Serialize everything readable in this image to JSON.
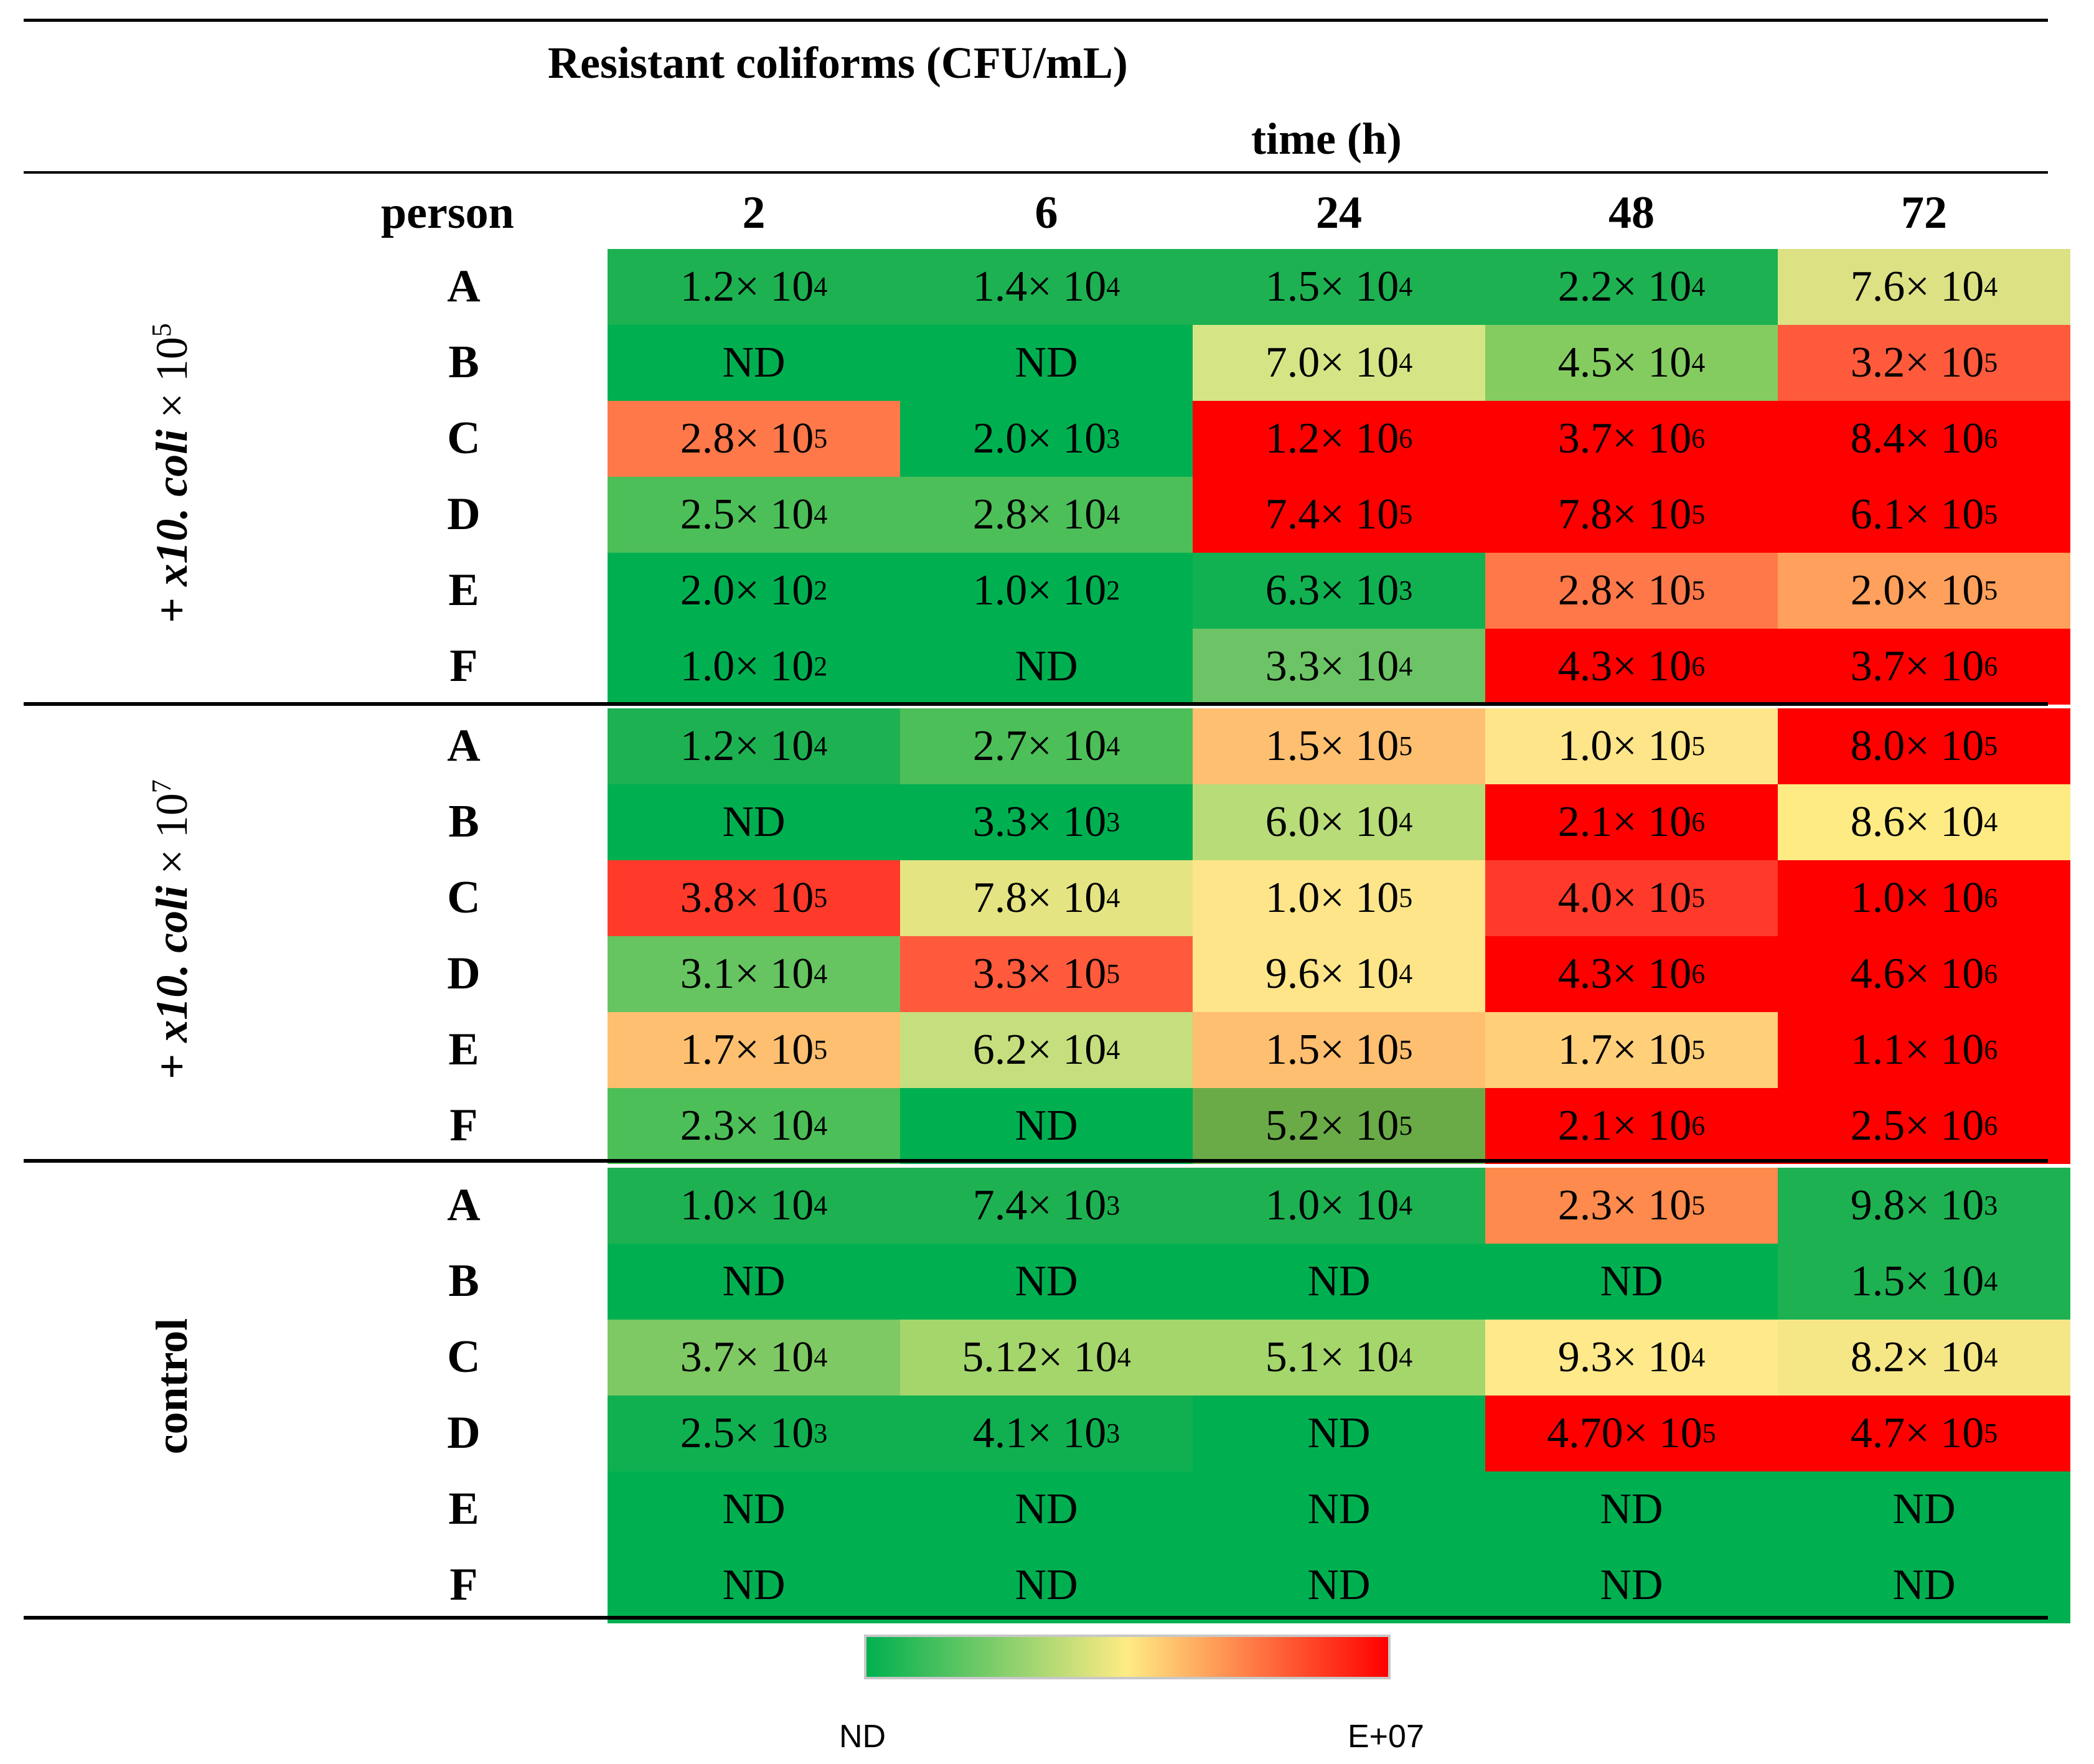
{
  "title": "Resistant coliforms (CFU/mL)",
  "time_label": "time (h)",
  "person_label": "person",
  "columns": [
    "2",
    "6",
    "24",
    "48",
    "72"
  ],
  "groups": [
    {
      "label_parts": [
        "+ ",
        "x10. coli",
        " × 10",
        "5"
      ]
    },
    {
      "label_parts": [
        "+ ",
        "x10. coli",
        " × 10",
        "7"
      ]
    },
    {
      "label_parts": [
        "control"
      ]
    }
  ],
  "colors": {
    "low": "#00b050",
    "mid": "#ffeb84",
    "high": "#ff0000"
  },
  "legend": {
    "min": "ND",
    "max": "E+07"
  },
  "chart_data": {
    "type": "heatmap",
    "title": "Resistant coliforms (CFU/mL)",
    "xlabel": "time (h)",
    "ylabel": "person",
    "x": [
      "2",
      "6",
      "24",
      "48",
      "72"
    ],
    "color_scale": {
      "min": "ND",
      "max": "E+07"
    },
    "rows": [
      {
        "group": 0,
        "person": "A",
        "cells": [
          [
            "1.2",
            "4",
            "#1db152"
          ],
          [
            "1.4",
            "4",
            "#1db152"
          ],
          [
            "1.5",
            "4",
            "#1db152"
          ],
          [
            "2.2",
            "4",
            "#1db152"
          ],
          [
            "7.6",
            "4",
            "#dce184"
          ]
        ]
      },
      {
        "group": 0,
        "person": "B",
        "cells": [
          [
            "ND",
            "",
            "#00b050"
          ],
          [
            "ND",
            "",
            "#00b050"
          ],
          [
            "7.0",
            "4",
            "#d5e586"
          ],
          [
            "4.5",
            "4",
            "#84cc60"
          ],
          [
            "3.2",
            "5",
            "#ff5a3c"
          ]
        ]
      },
      {
        "group": 0,
        "person": "C",
        "cells": [
          [
            "2.8",
            "5",
            "#ff7849"
          ],
          [
            "2.0",
            "3",
            "#00b050"
          ],
          [
            "1.2",
            "6",
            "#ff0000"
          ],
          [
            "3.7",
            "6",
            "#ff0000"
          ],
          [
            "8.4",
            "6",
            "#ff0000"
          ]
        ]
      },
      {
        "group": 0,
        "person": "D",
        "cells": [
          [
            "2.5",
            "4",
            "#4cbf59"
          ],
          [
            "2.8",
            "4",
            "#4cbf59"
          ],
          [
            "7.4",
            "5",
            "#ff0000"
          ],
          [
            "7.8",
            "5",
            "#ff0000"
          ],
          [
            "6.1",
            "5",
            "#ff0000"
          ]
        ]
      },
      {
        "group": 0,
        "person": "E",
        "cells": [
          [
            "2.0",
            "2",
            "#00b050"
          ],
          [
            "1.0",
            "2",
            "#00b050"
          ],
          [
            "6.3",
            "3",
            "#11b151"
          ],
          [
            "2.8",
            "5",
            "#ff7849"
          ],
          [
            "2.0",
            "5",
            "#ffa05c"
          ]
        ]
      },
      {
        "group": 0,
        "person": "F",
        "cells": [
          [
            "1.0",
            "2",
            "#00b050"
          ],
          [
            "ND",
            "",
            "#00b050"
          ],
          [
            "3.3",
            "4",
            "#6cc466"
          ],
          [
            "4.3",
            "6",
            "#ff0000"
          ],
          [
            "3.7",
            "6",
            "#ff0000"
          ]
        ]
      },
      {
        "group": 1,
        "person": "A",
        "cells": [
          [
            "1.2",
            "4",
            "#1db152"
          ],
          [
            "2.7",
            "4",
            "#4cbf59"
          ],
          [
            "1.5",
            "5",
            "#ffbf70"
          ],
          [
            "1.0",
            "5",
            "#ffe58a"
          ],
          [
            "8.0",
            "5",
            "#ff0000"
          ]
        ]
      },
      {
        "group": 1,
        "person": "B",
        "cells": [
          [
            "ND",
            "",
            "#00b050"
          ],
          [
            "3.3",
            "3",
            "#00b050"
          ],
          [
            "6.0",
            "4",
            "#b8dc78"
          ],
          [
            "2.1",
            "6",
            "#ff0000"
          ],
          [
            "8.6",
            "4",
            "#ffeb84"
          ]
        ]
      },
      {
        "group": 1,
        "person": "C",
        "cells": [
          [
            "3.8",
            "5",
            "#ff3a2a"
          ],
          [
            "7.8",
            "4",
            "#e4e483"
          ],
          [
            "1.0",
            "5",
            "#ffe58a"
          ],
          [
            "4.0",
            "5",
            "#ff3a2a"
          ],
          [
            "1.0",
            "6",
            "#ff0000"
          ]
        ]
      },
      {
        "group": 1,
        "person": "D",
        "cells": [
          [
            "3.1",
            "4",
            "#66c461"
          ],
          [
            "3.3",
            "5",
            "#ff5a3c"
          ],
          [
            "9.6",
            "4",
            "#ffe58a"
          ],
          [
            "4.3",
            "6",
            "#ff0000"
          ],
          [
            "4.6",
            "6",
            "#ff0000"
          ]
        ]
      },
      {
        "group": 1,
        "person": "E",
        "cells": [
          [
            "1.7",
            "5",
            "#ffbf70"
          ],
          [
            "6.2",
            "4",
            "#c6df7e"
          ],
          [
            "1.5",
            "5",
            "#ffbf70"
          ],
          [
            "1.7",
            "5",
            "#ffcf7a"
          ],
          [
            "1.1",
            "6",
            "#ff0000"
          ]
        ]
      },
      {
        "group": 1,
        "person": "F",
        "cells": [
          [
            "2.3",
            "4",
            "#4cbf59"
          ],
          [
            "ND",
            "",
            "#00b050"
          ],
          [
            "5.2",
            "5",
            "#6aab48"
          ],
          [
            "2.1",
            "6",
            "#ff0000"
          ],
          [
            "2.5",
            "6",
            "#ff0000"
          ]
        ]
      },
      {
        "group": 2,
        "person": "A",
        "cells": [
          [
            "1.0",
            "4",
            "#1db152"
          ],
          [
            "7.4",
            "3",
            "#1db152"
          ],
          [
            "1.0",
            "4",
            "#1db152"
          ],
          [
            "2.3",
            "5",
            "#ff8a4d"
          ],
          [
            "9.8",
            "3",
            "#1db152"
          ]
        ]
      },
      {
        "group": 2,
        "person": "B",
        "cells": [
          [
            "ND",
            "",
            "#00b050"
          ],
          [
            "ND",
            "",
            "#00b050"
          ],
          [
            "ND",
            "",
            "#00b050"
          ],
          [
            "ND",
            "",
            "#00b050"
          ],
          [
            "1.5",
            "4",
            "#1db152"
          ]
        ]
      },
      {
        "group": 2,
        "person": "C",
        "cells": [
          [
            "3.7",
            "4",
            "#7ec963"
          ],
          [
            "5.12",
            "4",
            "#a4d66c"
          ],
          [
            "5.1",
            "4",
            "#a4d66c"
          ],
          [
            "9.3",
            "4",
            "#ffe98a"
          ],
          [
            "8.2",
            "4",
            "#f5e686"
          ]
        ]
      },
      {
        "group": 2,
        "person": "D",
        "cells": [
          [
            "2.5",
            "3",
            "#10b050"
          ],
          [
            "4.1",
            "3",
            "#10b050"
          ],
          [
            "ND",
            "",
            "#00b050"
          ],
          [
            "4.70",
            "5",
            "#ff0000"
          ],
          [
            "4.7",
            "5",
            "#ff0000"
          ]
        ]
      },
      {
        "group": 2,
        "person": "E",
        "cells": [
          [
            "ND",
            "",
            "#00b050"
          ],
          [
            "ND",
            "",
            "#00b050"
          ],
          [
            "ND",
            "",
            "#00b050"
          ],
          [
            "ND",
            "",
            "#00b050"
          ],
          [
            "ND",
            "",
            "#00b050"
          ]
        ]
      },
      {
        "group": 2,
        "person": "F",
        "cells": [
          [
            "ND",
            "",
            "#00b050"
          ],
          [
            "ND",
            "",
            "#00b050"
          ],
          [
            "ND",
            "",
            "#00b050"
          ],
          [
            "ND",
            "",
            "#00b050"
          ],
          [
            "ND",
            "",
            "#00b050"
          ]
        ]
      }
    ]
  }
}
